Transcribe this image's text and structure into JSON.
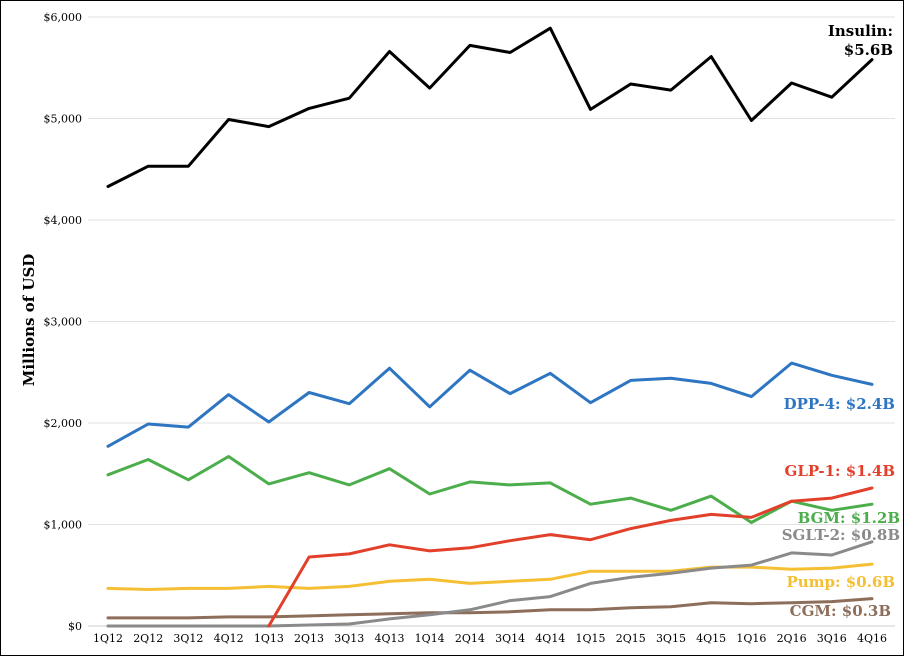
{
  "chart_data": {
    "type": "line",
    "title": "",
    "xlabel": "",
    "ylabel": "Millions of USD",
    "ylim": [
      0,
      6000
    ],
    "yticks": [
      "$0",
      "$1,000",
      "$2,000",
      "$3,000",
      "$4,000",
      "$5,000",
      "$6,000"
    ],
    "ytick_values": [
      0,
      1000,
      2000,
      3000,
      4000,
      5000,
      6000
    ],
    "grid": true,
    "legend": "inline-labels-right",
    "categories": [
      "1Q12",
      "2Q12",
      "3Q12",
      "4Q12",
      "1Q13",
      "2Q13",
      "3Q13",
      "4Q13",
      "1Q14",
      "2Q14",
      "3Q14",
      "4Q14",
      "1Q15",
      "2Q15",
      "3Q15",
      "4Q15",
      "1Q16",
      "2Q16",
      "3Q16",
      "4Q16"
    ],
    "series": [
      {
        "name": "Insulin",
        "label": [
          "Insulin:",
          "$5.6B"
        ],
        "color": "#000000",
        "values": [
          4330,
          4530,
          4530,
          4990,
          4920,
          5100,
          5200,
          5660,
          5300,
          5720,
          5650,
          5890,
          5090,
          5340,
          5280,
          5610,
          4980,
          5350,
          5210,
          5580
        ]
      },
      {
        "name": "DPP-4",
        "label": [
          "DPP-4: $2.4B"
        ],
        "color": "#2E75C2",
        "values": [
          1770,
          1990,
          1960,
          2280,
          2010,
          2300,
          2190,
          2540,
          2160,
          2520,
          2290,
          2490,
          2200,
          2420,
          2440,
          2390,
          2260,
          2590,
          2470,
          2380
        ]
      },
      {
        "name": "GLP-1",
        "label": [
          "GLP-1: $1.4B"
        ],
        "color": "#E2402B",
        "values": [
          null,
          null,
          null,
          null,
          0,
          680,
          710,
          800,
          740,
          770,
          840,
          900,
          850,
          960,
          1040,
          1100,
          1070,
          1230,
          1260,
          1360
        ]
      },
      {
        "name": "BGM",
        "label": [
          "BGM: $1.2B"
        ],
        "color": "#4BAE4B",
        "values": [
          1490,
          1640,
          1440,
          1670,
          1400,
          1510,
          1390,
          1550,
          1300,
          1420,
          1390,
          1410,
          1200,
          1260,
          1140,
          1280,
          1020,
          1230,
          1140,
          1200
        ]
      },
      {
        "name": "SGLT-2",
        "label": [
          "SGLT-2: $0.8B"
        ],
        "color": "#8A8A8A",
        "values": [
          0,
          0,
          0,
          0,
          0,
          10,
          20,
          70,
          110,
          160,
          250,
          290,
          420,
          480,
          520,
          570,
          600,
          720,
          700,
          830
        ]
      },
      {
        "name": "Pump",
        "label": [
          "Pump: $0.6B"
        ],
        "color": "#F5BF33",
        "values": [
          370,
          360,
          370,
          370,
          390,
          370,
          390,
          440,
          460,
          420,
          440,
          460,
          540,
          540,
          540,
          580,
          580,
          560,
          570,
          610
        ]
      },
      {
        "name": "CGM",
        "label": [
          "CGM: $0.3B"
        ],
        "color": "#8D6E5A",
        "values": [
          80,
          80,
          80,
          90,
          90,
          100,
          110,
          120,
          130,
          130,
          140,
          160,
          160,
          180,
          190,
          230,
          220,
          230,
          240,
          270
        ]
      }
    ]
  }
}
